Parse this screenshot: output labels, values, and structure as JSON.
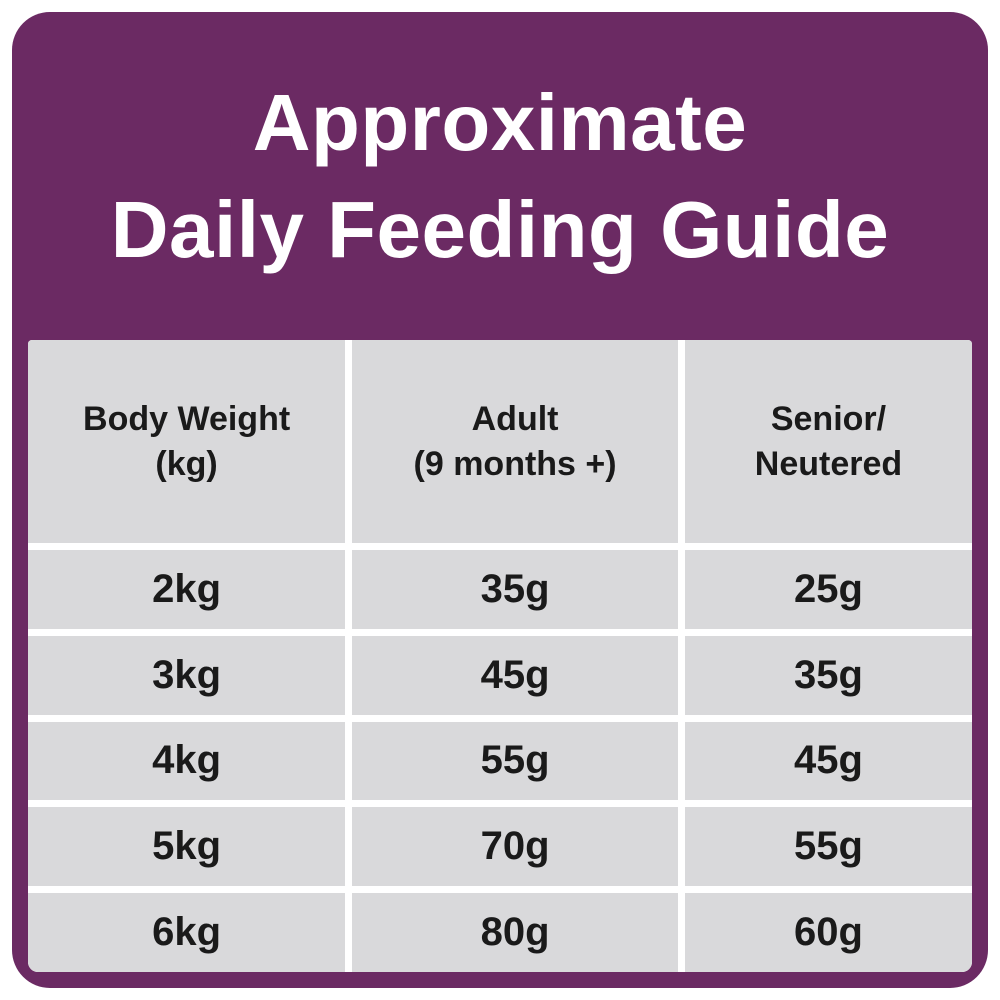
{
  "colors": {
    "purple": "#6B2A63",
    "cell_gray": "#D9D9DB",
    "text_dark": "#1A1A1A",
    "white": "#FFFFFF"
  },
  "title": {
    "line1": "Approximate",
    "line2": "Daily Feeding Guide"
  },
  "table": {
    "headers": [
      [
        "Body Weight",
        "(kg)"
      ],
      [
        "Adult",
        "(9 months +)"
      ],
      [
        "Senior/",
        "Neutered"
      ]
    ]
  },
  "chart_data": {
    "type": "table",
    "title": "Approximate Daily Feeding Guide",
    "columns": [
      "Body Weight (kg)",
      "Adult (9 months +)",
      "Senior/Neutered"
    ],
    "rows": [
      [
        "2kg",
        "35g",
        "25g"
      ],
      [
        "3kg",
        "45g",
        "35g"
      ],
      [
        "4kg",
        "55g",
        "45g"
      ],
      [
        "5kg",
        "70g",
        "55g"
      ],
      [
        "6kg",
        "80g",
        "60g"
      ]
    ]
  }
}
